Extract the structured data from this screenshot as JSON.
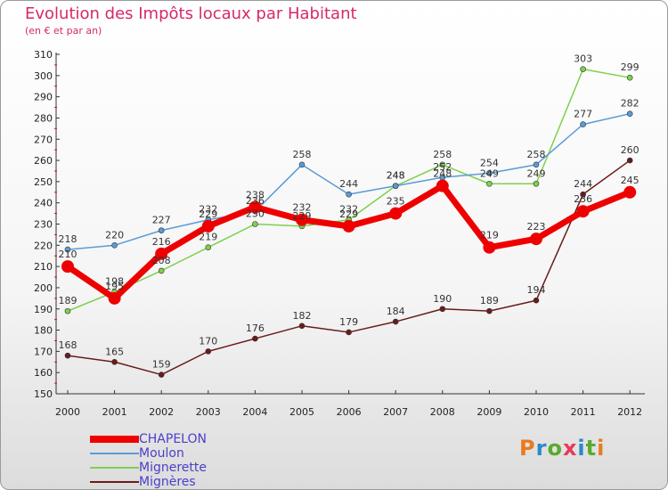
{
  "title": "Evolution des Impôts locaux par Habitant",
  "subtitle": "(en € et par an)",
  "logo": {
    "text": "Proxiti",
    "letter_colors": [
      "#e87b20",
      "#2a89c9",
      "#5aaa2e",
      "#e83a55",
      "#2a89c9",
      "#5aaa2e",
      "#e87b20"
    ]
  },
  "chart_data": {
    "type": "line",
    "x": [
      "2000",
      "2001",
      "2002",
      "2003",
      "2004",
      "2005",
      "2006",
      "2007",
      "2008",
      "2009",
      "2010",
      "2011",
      "2012"
    ],
    "ylim": [
      150,
      310
    ],
    "yticks": [
      150,
      160,
      170,
      180,
      190,
      200,
      210,
      220,
      230,
      240,
      250,
      260,
      270,
      280,
      290,
      300,
      310
    ],
    "grid": false,
    "legend_position": "bottom-left",
    "series": [
      {
        "name": "Mignères",
        "color": "#6b1b1b",
        "values": [
          168,
          165,
          159,
          170,
          176,
          182,
          179,
          184,
          190,
          189,
          194,
          244,
          260
        ]
      },
      {
        "name": "Mignerette",
        "color": "#7ed04e",
        "values": [
          189,
          198,
          208,
          219,
          230,
          229,
          232,
          248,
          258,
          249,
          249,
          303,
          299
        ]
      },
      {
        "name": "Moulon",
        "color": "#5b9bd5",
        "values": [
          218,
          220,
          227,
          232,
          236,
          258,
          244,
          248,
          252,
          254,
          258,
          277,
          282
        ]
      },
      {
        "name": "CHAPELON",
        "color": "#ee0000",
        "values": [
          210,
          195,
          216,
          229,
          238,
          232,
          229,
          235,
          248,
          219,
          223,
          236,
          245
        ]
      }
    ]
  }
}
